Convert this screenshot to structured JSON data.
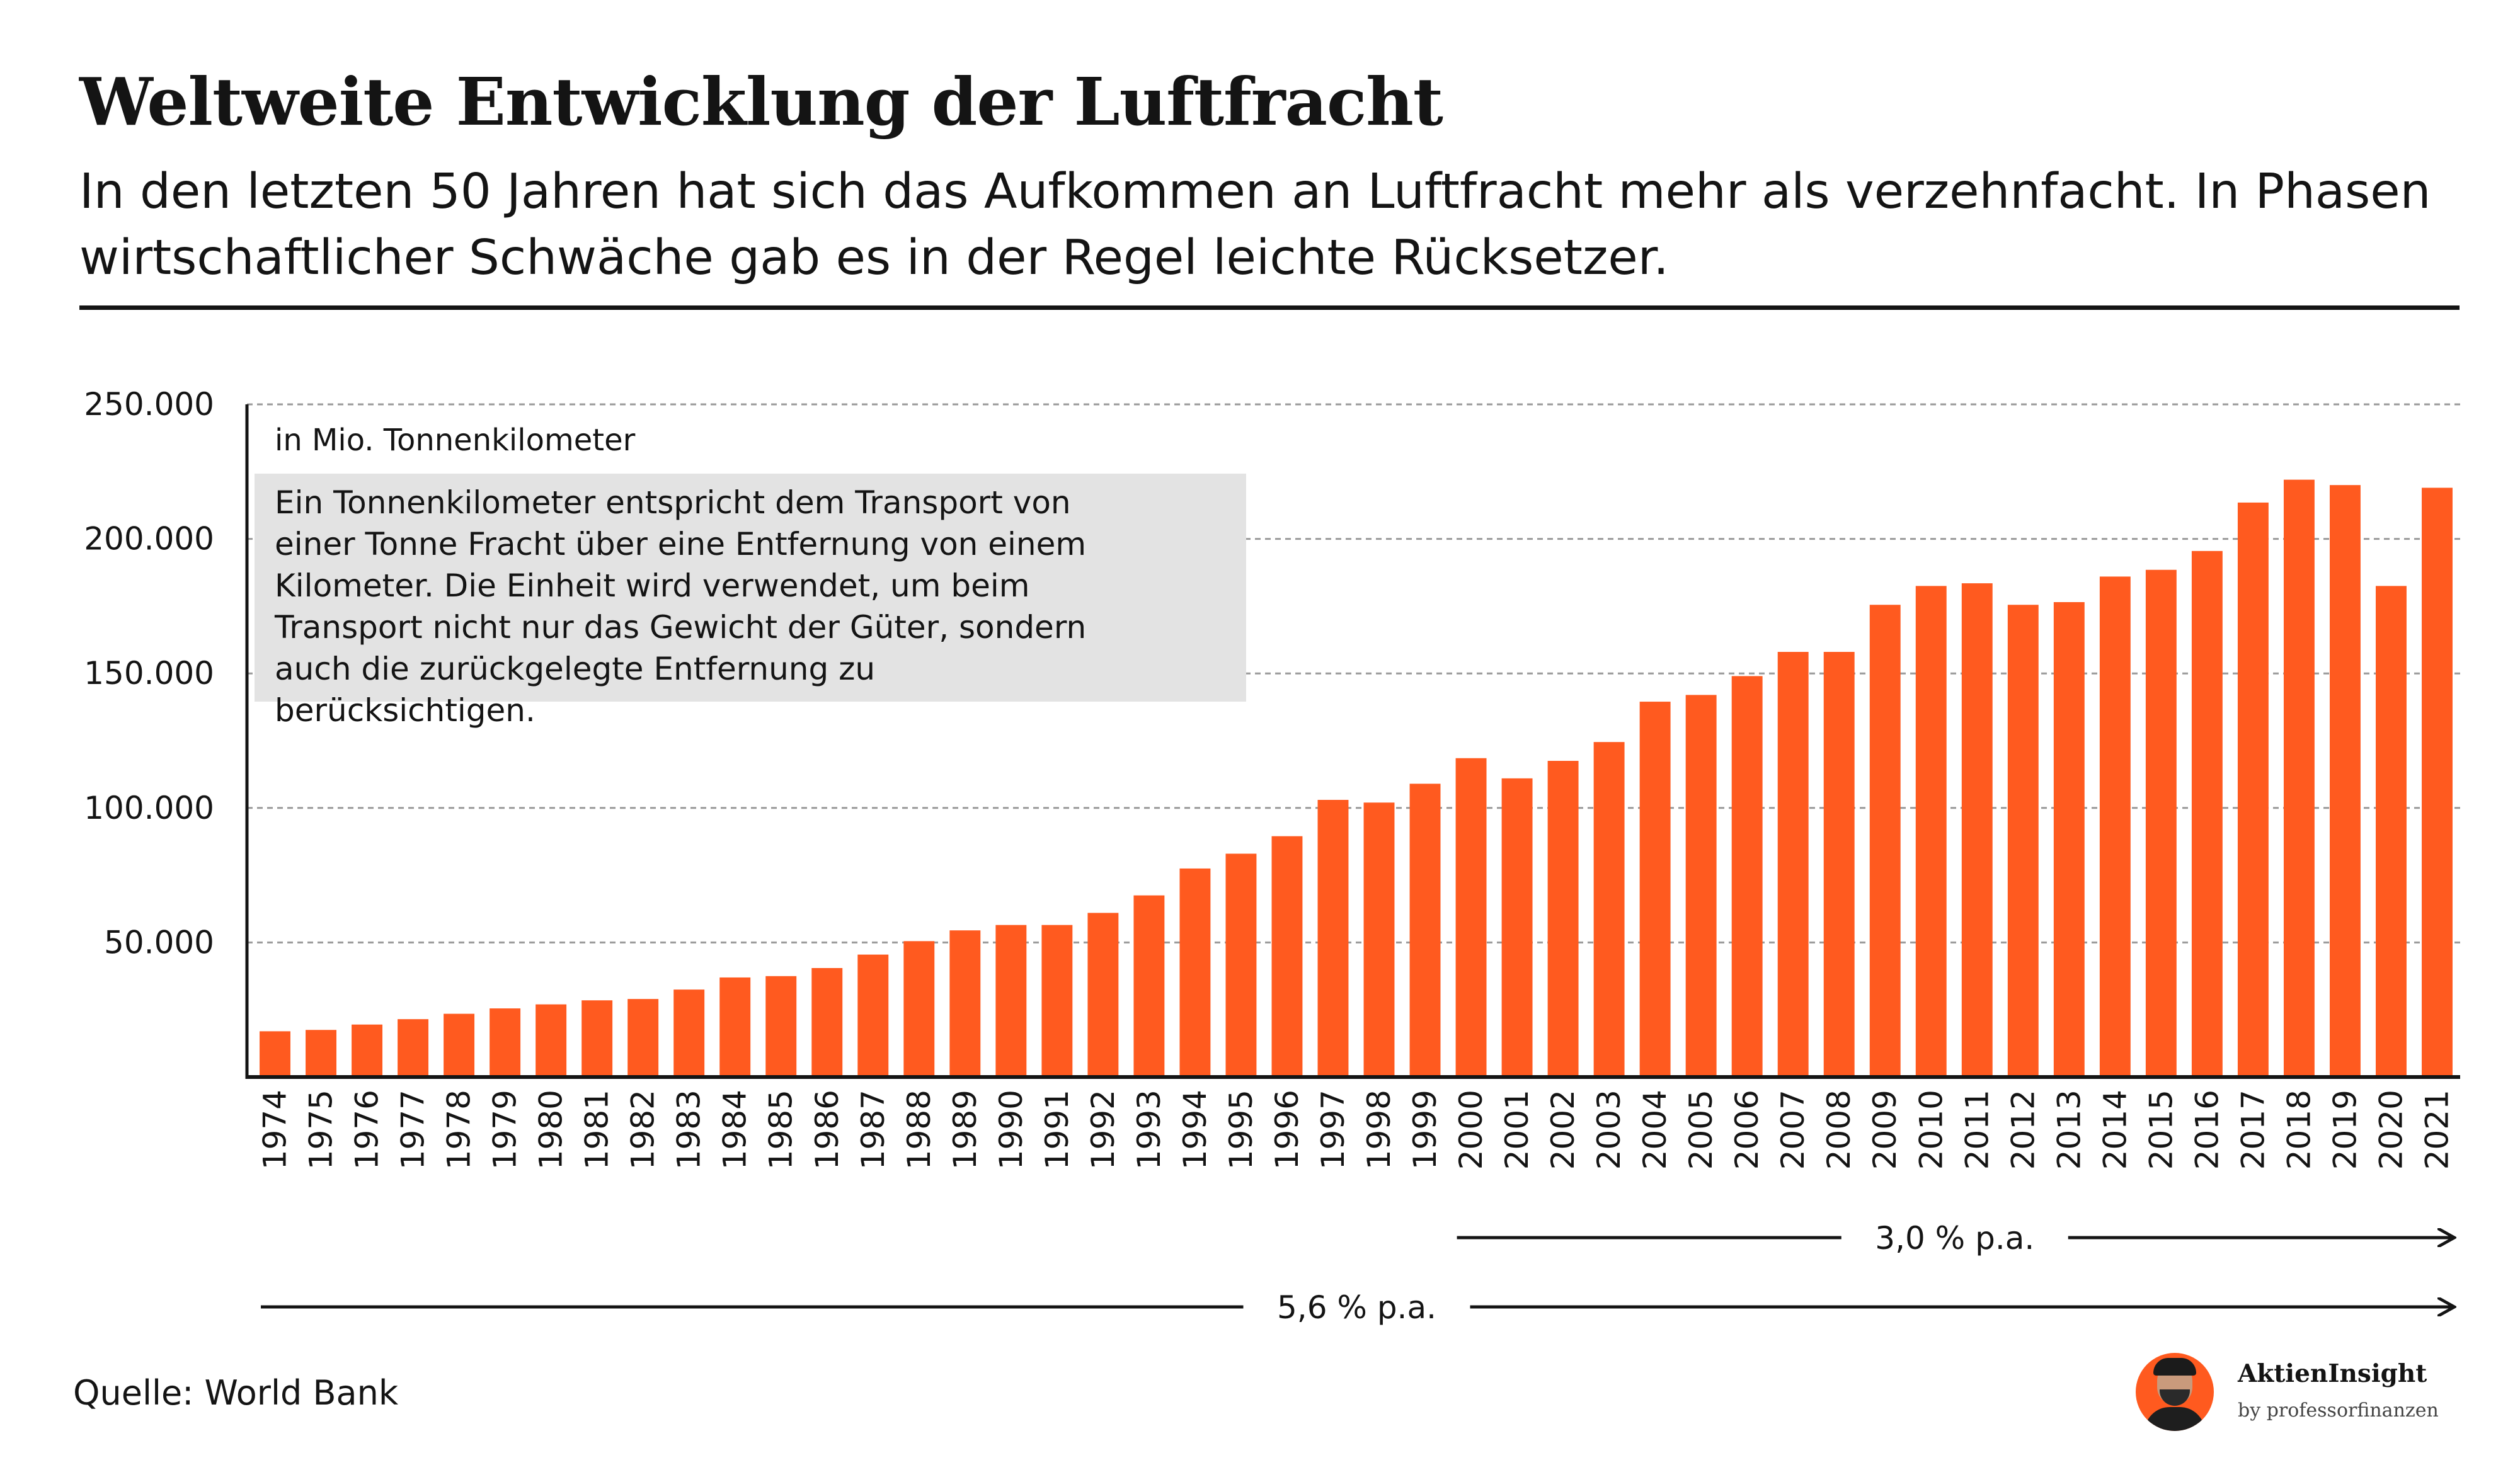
{
  "header": {
    "title": "Weltweite Entwicklung der Luftfracht",
    "subtitle": "In den letzten 50 Jahren hat sich das Aufkommen an Luftfracht mehr als verzehnfacht. In Phasen wirtschaftlicher Schwäche gab es in der Regel leichte Rücksetzer."
  },
  "colors": {
    "bar": "#ff5a1f",
    "text": "#141414",
    "note_bg": "#e3e3e3",
    "grid": "#9a9a9a"
  },
  "chart_data": {
    "type": "bar",
    "unit_label": "in Mio. Tonnenkilometer",
    "note": "Ein Tonnenkilometer entspricht dem Transport von einer Tonne Fracht über eine Entfernung von einem Kilometer. Die Einheit wird verwendet, um beim Transport nicht nur das Gewicht der Güter, sondern auch die zurückgelegte Entfernung zu berücksichtigen.",
    "categories": [
      "1974",
      "1975",
      "1976",
      "1977",
      "1978",
      "1979",
      "1980",
      "1981",
      "1982",
      "1983",
      "1984",
      "1985",
      "1986",
      "1987",
      "1988",
      "1989",
      "1990",
      "1991",
      "1992",
      "1993",
      "1994",
      "1995",
      "1996",
      "1997",
      "1998",
      "1999",
      "2000",
      "2001",
      "2002",
      "2003",
      "2004",
      "2005",
      "2006",
      "2007",
      "2008",
      "2009",
      "2010",
      "2011",
      "2012",
      "2013",
      "2014",
      "2015",
      "2016",
      "2017",
      "2018",
      "2019",
      "2020",
      "2021"
    ],
    "values": [
      17000,
      17500,
      19500,
      21500,
      23500,
      25500,
      27000,
      28500,
      29000,
      32500,
      37000,
      37500,
      40500,
      45500,
      50500,
      54500,
      56500,
      56500,
      61000,
      67500,
      77500,
      83000,
      89500,
      103000,
      102000,
      109000,
      118500,
      111000,
      117500,
      124500,
      139500,
      142000,
      149000,
      158000,
      158000,
      175500,
      182500,
      183500,
      175500,
      176500,
      186000,
      188500,
      195500,
      213500,
      222000,
      220000,
      182500,
      219000
    ],
    "yticks": [
      50000,
      100000,
      150000,
      200000,
      250000
    ],
    "ytick_labels": [
      "50.000",
      "100.000",
      "150.000",
      "200.000",
      "250.000"
    ],
    "ylim": [
      0,
      250000
    ],
    "grid": true,
    "annotations": [
      {
        "label": "3,0 % p.a.",
        "from": "2000",
        "to": "2021"
      },
      {
        "label": "5,6 % p.a.",
        "from": "1974",
        "to": "2021"
      }
    ]
  },
  "footer": {
    "source": "Quelle: World Bank",
    "brand_name": "AktienInsight",
    "brand_by": "by professorfinanzen",
    "avatar_icon": "avatar-icon"
  }
}
